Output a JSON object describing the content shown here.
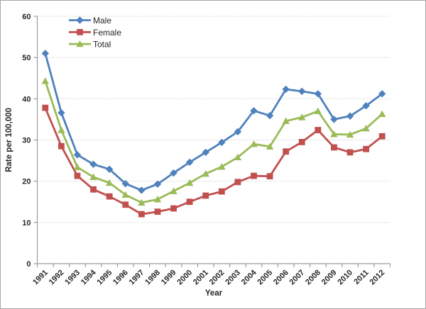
{
  "chart_data": {
    "type": "line",
    "title": "",
    "xlabel": "Year",
    "ylabel": "Rate per 100,000",
    "ylim": [
      0,
      60
    ],
    "yticks": [
      0,
      10,
      20,
      30,
      40,
      50,
      60
    ],
    "grid": "horizontal-dotted",
    "legend_position": "top-left-inside",
    "x": [
      "1991",
      "1992",
      "1993",
      "1994",
      "1995",
      "1996",
      "1997",
      "1998",
      "1999",
      "2000",
      "2001",
      "2002",
      "2003",
      "2004",
      "2005",
      "2006",
      "2007",
      "2008",
      "2009",
      "2010",
      "2011",
      "2012"
    ],
    "series": [
      {
        "name": "Male",
        "color": "#4F81BD",
        "marker": "diamond",
        "values": [
          51.0,
          36.6,
          26.4,
          24.1,
          22.9,
          19.4,
          17.8,
          19.3,
          22.0,
          24.6,
          27.0,
          29.4,
          32.0,
          37.1,
          35.9,
          42.3,
          41.8,
          41.2,
          35.0,
          35.8,
          38.3,
          41.2
        ]
      },
      {
        "name": "Female",
        "color": "#C0504D",
        "marker": "square",
        "values": [
          37.8,
          28.5,
          21.3,
          18.0,
          16.3,
          14.3,
          12.0,
          12.6,
          13.4,
          15.0,
          16.5,
          17.5,
          19.8,
          21.3,
          21.2,
          27.2,
          29.5,
          32.4,
          28.2,
          27.0,
          27.8,
          30.9
        ]
      },
      {
        "name": "Total",
        "color": "#9BBB59",
        "marker": "triangle",
        "values": [
          44.3,
          32.4,
          23.4,
          21.0,
          19.6,
          16.7,
          14.8,
          15.6,
          17.6,
          19.6,
          21.8,
          23.5,
          25.8,
          29.0,
          28.4,
          34.6,
          35.5,
          37.0,
          31.4,
          31.3,
          32.8,
          36.3
        ]
      }
    ],
    "style": {
      "grid_color": "#C3C3C3",
      "axis_color": "#9C9C9C",
      "text_color": "#262626",
      "frame_border_color": "#A6A6A6",
      "background": "#FFFFFF"
    }
  }
}
